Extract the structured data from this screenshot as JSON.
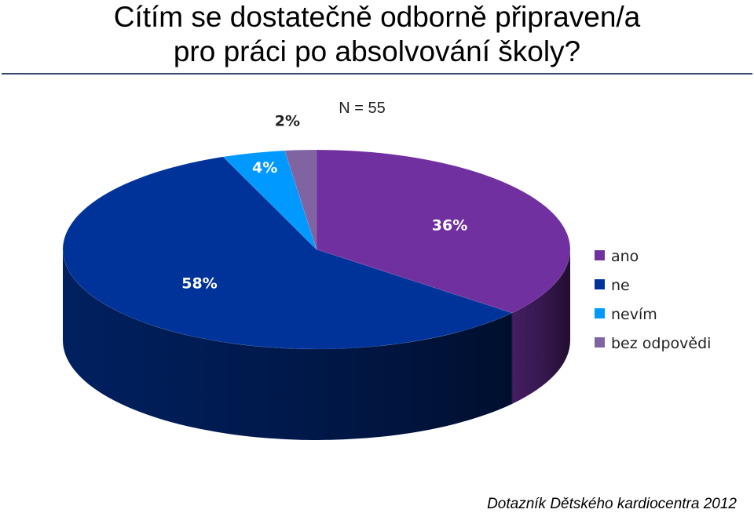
{
  "title_line1": "Cítím se dostatečně odborně připraven/a",
  "title_line2": "pro práci po absolvování školy?",
  "footer": "Dotazník Dětského kardiocentra 2012",
  "chart_data": {
    "type": "pie",
    "style": "3d",
    "annotation": "N = 55",
    "legend_position": "right",
    "slices": [
      {
        "name": "ano",
        "value": 36,
        "label": "36%",
        "color": "#7030a0",
        "label_color": "#ffffff"
      },
      {
        "name": "ne",
        "value": 58,
        "label": "58%",
        "color": "#003399",
        "label_color": "#ffffff"
      },
      {
        "name": "nevím",
        "value": 4,
        "label": "4%",
        "color": "#0099ff",
        "label_color": "#ffffff"
      },
      {
        "name": "bez odpovědi",
        "value": 2,
        "label": "2%",
        "color": "#8064a2",
        "label_color": "#222222"
      }
    ]
  }
}
